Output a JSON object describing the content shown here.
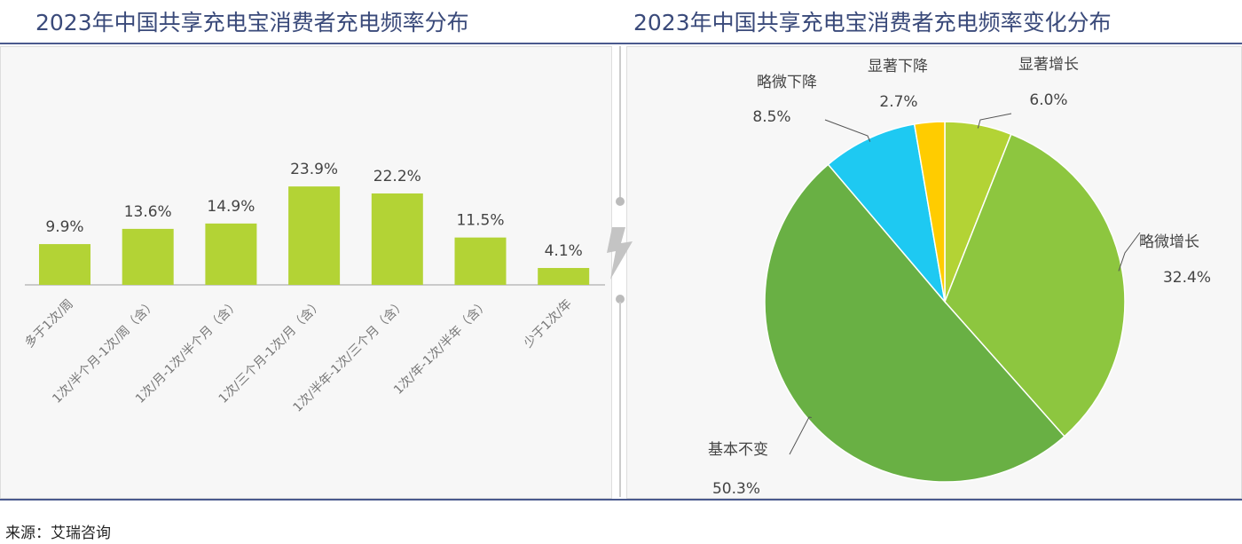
{
  "chart_data": [
    {
      "type": "bar",
      "title": "2023年中国共享充电宝消费者充电频率分布",
      "categories": [
        "多于1次/周",
        "1次/半个月-1次/周（含）",
        "1次/月-1次/半个月（含）",
        "1次/三个月-1次/月（含）",
        "1次/半年-1次/三个月（含）",
        "1次/年-1次/半年（含）",
        "少于1次/年"
      ],
      "values": [
        9.9,
        13.6,
        14.9,
        23.9,
        22.2,
        11.5,
        4.1
      ],
      "labels": [
        "9.9%",
        "13.6%",
        "14.9%",
        "23.9%",
        "22.2%",
        "11.5%",
        "4.1%"
      ],
      "color": "#b3d335",
      "grid": false
    },
    {
      "type": "pie",
      "title": "2023年中国共享充电宝消费者充电频率变化分布",
      "slices": [
        {
          "name": "显著增长",
          "value": 6.0,
          "label": "6.0%",
          "color": "#b3d335"
        },
        {
          "name": "略微增长",
          "value": 32.4,
          "label": "32.4%",
          "color": "#8dc63f"
        },
        {
          "name": "基本不变",
          "value": 50.3,
          "label": "50.3%",
          "color": "#69b044"
        },
        {
          "name": "略微下降",
          "value": 8.5,
          "label": "8.5%",
          "color": "#1ec9f2"
        },
        {
          "name": "显著下降",
          "value": 2.7,
          "label": "2.7%",
          "color": "#ffcc00"
        }
      ]
    }
  ],
  "source": "来源：艾瑞咨询",
  "divider_icon": "lightning-icon"
}
